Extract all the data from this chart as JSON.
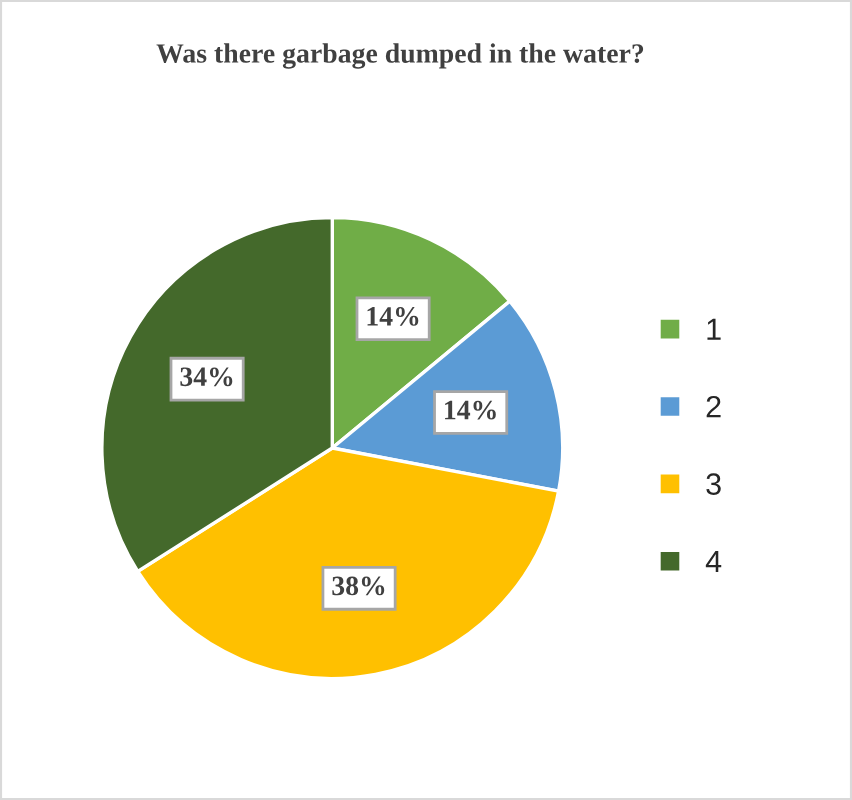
{
  "chart_data": {
    "type": "pie",
    "title": "Was there garbage dumped in the water?",
    "categories": [
      "1",
      "2",
      "3",
      "4"
    ],
    "values": [
      14,
      14,
      38,
      34
    ],
    "colors": [
      "#70ad47",
      "#5b9bd5",
      "#ffc000",
      "#44692b"
    ],
    "value_labels": [
      "14%",
      "14%",
      "38%",
      "34%"
    ],
    "legend": "right"
  }
}
